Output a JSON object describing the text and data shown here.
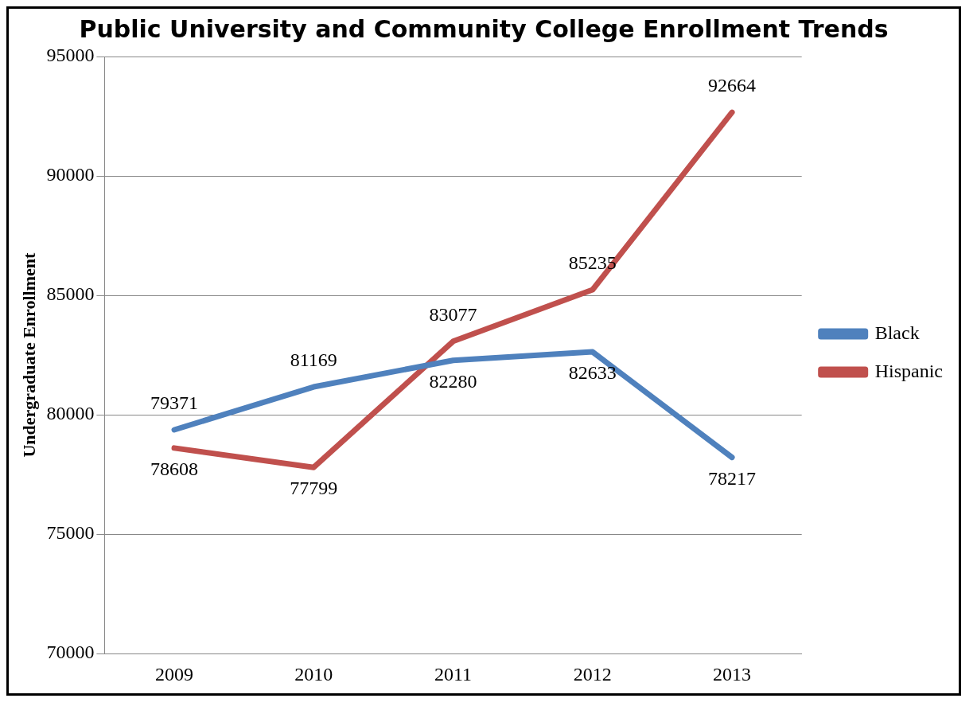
{
  "chart_data": {
    "type": "line",
    "title": "Public University and Community College Enrollment Trends",
    "ylabel": "Undergraduate Enrollment",
    "categories": [
      "2009",
      "2010",
      "2011",
      "2012",
      "2013"
    ],
    "series": [
      {
        "name": "Black",
        "color": "#4f81bd",
        "values": [
          79371,
          81169,
          82280,
          82633,
          78217
        ]
      },
      {
        "name": "Hispanic",
        "color": "#c0504d",
        "values": [
          78608,
          77799,
          83077,
          85235,
          92664
        ]
      }
    ],
    "ylim": [
      70000,
      95000
    ],
    "yticks": [
      70000,
      75000,
      80000,
      85000,
      90000,
      95000
    ],
    "grid": "y",
    "legend": "right",
    "data_labels": true,
    "marker": "none",
    "line_style": "solid"
  }
}
